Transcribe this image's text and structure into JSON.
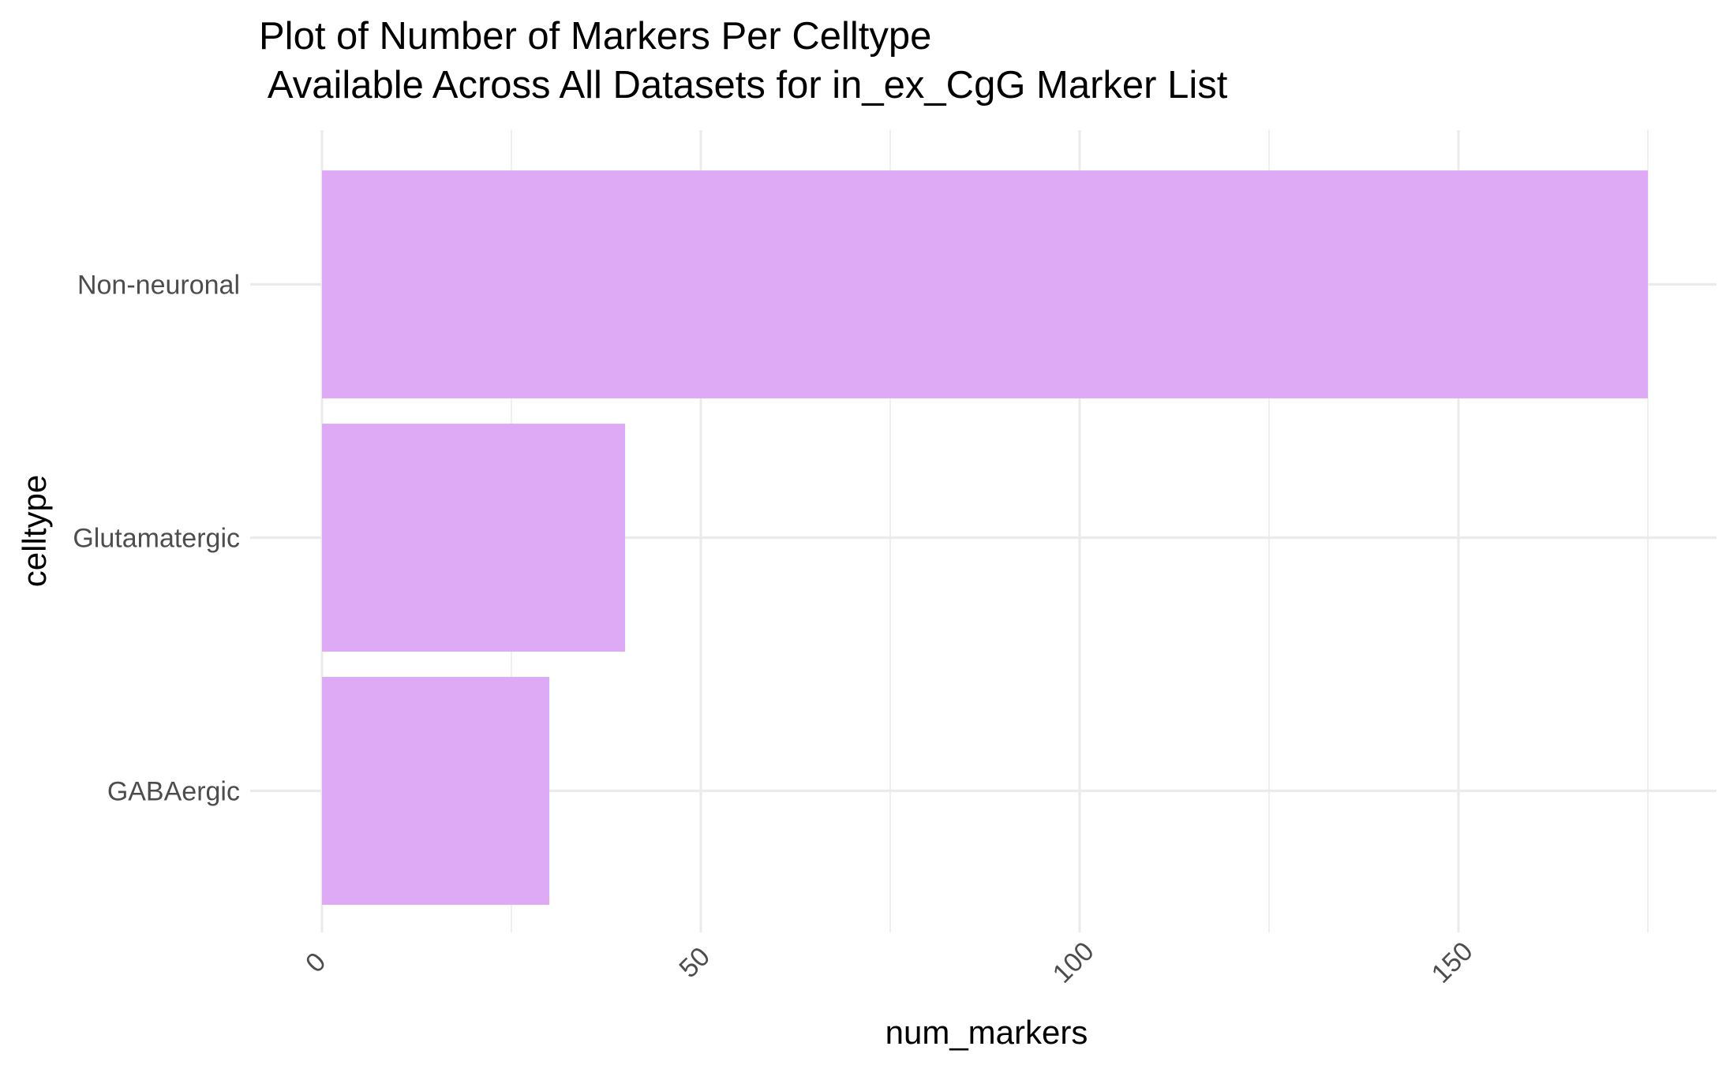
{
  "chart_data": {
    "type": "bar",
    "orientation": "horizontal",
    "title_line1": "Plot of Number of Markers Per Celltype",
    "title_line2": " Available Across All Datasets for in_ex_CgG Marker List",
    "xlabel": "num_markers",
    "ylabel": "celltype",
    "categories": [
      "Non-neuronal",
      "Glutamatergic",
      "GABAergic"
    ],
    "values": [
      175,
      40,
      30
    ],
    "xlim": [
      0,
      175
    ],
    "x_ticks": [
      0,
      50,
      100,
      150
    ],
    "x_tick_labels": [
      "0",
      "50",
      "100",
      "150"
    ],
    "x_minor_ticks": [
      25,
      75,
      125,
      175
    ],
    "x_tick_label_rotation": "45",
    "grid": true,
    "legend": "none",
    "bar_color": "#dfaaf5",
    "grid_color": "#ebebeb",
    "background_color": "#ffffff"
  }
}
